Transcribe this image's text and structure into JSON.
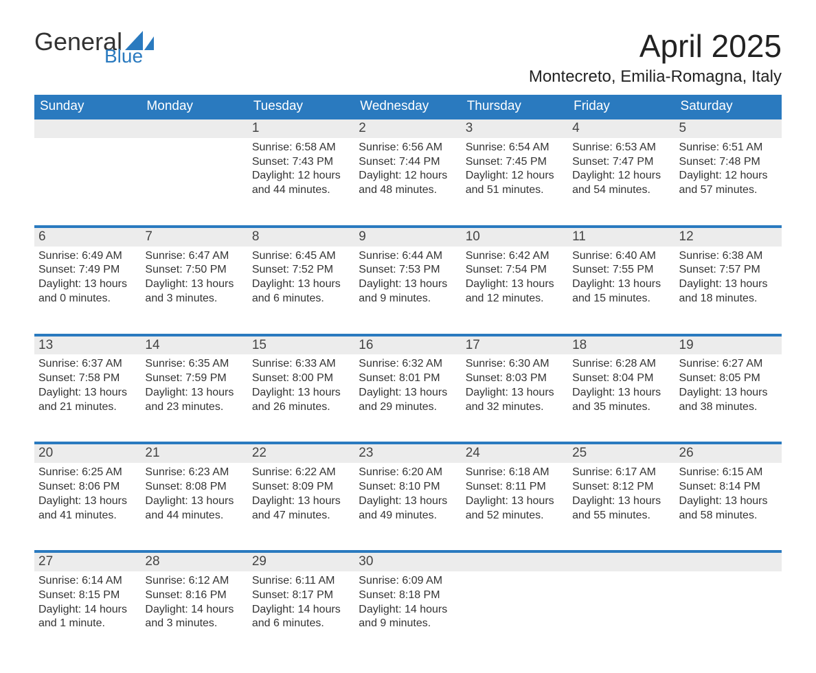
{
  "logo": {
    "text1": "General",
    "text2": "Blue"
  },
  "title": "April 2025",
  "location": "Montecreto, Emilia-Romagna, Italy",
  "colors": {
    "header_bg": "#2a7abf",
    "header_text": "#ffffff",
    "daynum_bg": "#ececec",
    "week_sep": "#2a7abf",
    "body_text": "#333333",
    "page_bg": "#ffffff"
  },
  "typography": {
    "title_fontsize": 46,
    "location_fontsize": 24,
    "th_fontsize": 19,
    "daynum_fontsize": 19,
    "cell_fontsize": 16,
    "logo_fontsize": 36
  },
  "day_headers": [
    "Sunday",
    "Monday",
    "Tuesday",
    "Wednesday",
    "Thursday",
    "Friday",
    "Saturday"
  ],
  "weeks": [
    [
      null,
      null,
      {
        "n": "1",
        "sr": "Sunrise: 6:58 AM",
        "ss": "Sunset: 7:43 PM",
        "dl": "Daylight: 12 hours and 44 minutes."
      },
      {
        "n": "2",
        "sr": "Sunrise: 6:56 AM",
        "ss": "Sunset: 7:44 PM",
        "dl": "Daylight: 12 hours and 48 minutes."
      },
      {
        "n": "3",
        "sr": "Sunrise: 6:54 AM",
        "ss": "Sunset: 7:45 PM",
        "dl": "Daylight: 12 hours and 51 minutes."
      },
      {
        "n": "4",
        "sr": "Sunrise: 6:53 AM",
        "ss": "Sunset: 7:47 PM",
        "dl": "Daylight: 12 hours and 54 minutes."
      },
      {
        "n": "5",
        "sr": "Sunrise: 6:51 AM",
        "ss": "Sunset: 7:48 PM",
        "dl": "Daylight: 12 hours and 57 minutes."
      }
    ],
    [
      {
        "n": "6",
        "sr": "Sunrise: 6:49 AM",
        "ss": "Sunset: 7:49 PM",
        "dl": "Daylight: 13 hours and 0 minutes."
      },
      {
        "n": "7",
        "sr": "Sunrise: 6:47 AM",
        "ss": "Sunset: 7:50 PM",
        "dl": "Daylight: 13 hours and 3 minutes."
      },
      {
        "n": "8",
        "sr": "Sunrise: 6:45 AM",
        "ss": "Sunset: 7:52 PM",
        "dl": "Daylight: 13 hours and 6 minutes."
      },
      {
        "n": "9",
        "sr": "Sunrise: 6:44 AM",
        "ss": "Sunset: 7:53 PM",
        "dl": "Daylight: 13 hours and 9 minutes."
      },
      {
        "n": "10",
        "sr": "Sunrise: 6:42 AM",
        "ss": "Sunset: 7:54 PM",
        "dl": "Daylight: 13 hours and 12 minutes."
      },
      {
        "n": "11",
        "sr": "Sunrise: 6:40 AM",
        "ss": "Sunset: 7:55 PM",
        "dl": "Daylight: 13 hours and 15 minutes."
      },
      {
        "n": "12",
        "sr": "Sunrise: 6:38 AM",
        "ss": "Sunset: 7:57 PM",
        "dl": "Daylight: 13 hours and 18 minutes."
      }
    ],
    [
      {
        "n": "13",
        "sr": "Sunrise: 6:37 AM",
        "ss": "Sunset: 7:58 PM",
        "dl": "Daylight: 13 hours and 21 minutes."
      },
      {
        "n": "14",
        "sr": "Sunrise: 6:35 AM",
        "ss": "Sunset: 7:59 PM",
        "dl": "Daylight: 13 hours and 23 minutes."
      },
      {
        "n": "15",
        "sr": "Sunrise: 6:33 AM",
        "ss": "Sunset: 8:00 PM",
        "dl": "Daylight: 13 hours and 26 minutes."
      },
      {
        "n": "16",
        "sr": "Sunrise: 6:32 AM",
        "ss": "Sunset: 8:01 PM",
        "dl": "Daylight: 13 hours and 29 minutes."
      },
      {
        "n": "17",
        "sr": "Sunrise: 6:30 AM",
        "ss": "Sunset: 8:03 PM",
        "dl": "Daylight: 13 hours and 32 minutes."
      },
      {
        "n": "18",
        "sr": "Sunrise: 6:28 AM",
        "ss": "Sunset: 8:04 PM",
        "dl": "Daylight: 13 hours and 35 minutes."
      },
      {
        "n": "19",
        "sr": "Sunrise: 6:27 AM",
        "ss": "Sunset: 8:05 PM",
        "dl": "Daylight: 13 hours and 38 minutes."
      }
    ],
    [
      {
        "n": "20",
        "sr": "Sunrise: 6:25 AM",
        "ss": "Sunset: 8:06 PM",
        "dl": "Daylight: 13 hours and 41 minutes."
      },
      {
        "n": "21",
        "sr": "Sunrise: 6:23 AM",
        "ss": "Sunset: 8:08 PM",
        "dl": "Daylight: 13 hours and 44 minutes."
      },
      {
        "n": "22",
        "sr": "Sunrise: 6:22 AM",
        "ss": "Sunset: 8:09 PM",
        "dl": "Daylight: 13 hours and 47 minutes."
      },
      {
        "n": "23",
        "sr": "Sunrise: 6:20 AM",
        "ss": "Sunset: 8:10 PM",
        "dl": "Daylight: 13 hours and 49 minutes."
      },
      {
        "n": "24",
        "sr": "Sunrise: 6:18 AM",
        "ss": "Sunset: 8:11 PM",
        "dl": "Daylight: 13 hours and 52 minutes."
      },
      {
        "n": "25",
        "sr": "Sunrise: 6:17 AM",
        "ss": "Sunset: 8:12 PM",
        "dl": "Daylight: 13 hours and 55 minutes."
      },
      {
        "n": "26",
        "sr": "Sunrise: 6:15 AM",
        "ss": "Sunset: 8:14 PM",
        "dl": "Daylight: 13 hours and 58 minutes."
      }
    ],
    [
      {
        "n": "27",
        "sr": "Sunrise: 6:14 AM",
        "ss": "Sunset: 8:15 PM",
        "dl": "Daylight: 14 hours and 1 minute."
      },
      {
        "n": "28",
        "sr": "Sunrise: 6:12 AM",
        "ss": "Sunset: 8:16 PM",
        "dl": "Daylight: 14 hours and 3 minutes."
      },
      {
        "n": "29",
        "sr": "Sunrise: 6:11 AM",
        "ss": "Sunset: 8:17 PM",
        "dl": "Daylight: 14 hours and 6 minutes."
      },
      {
        "n": "30",
        "sr": "Sunrise: 6:09 AM",
        "ss": "Sunset: 8:18 PM",
        "dl": "Daylight: 14 hours and 9 minutes."
      },
      null,
      null,
      null
    ]
  ]
}
